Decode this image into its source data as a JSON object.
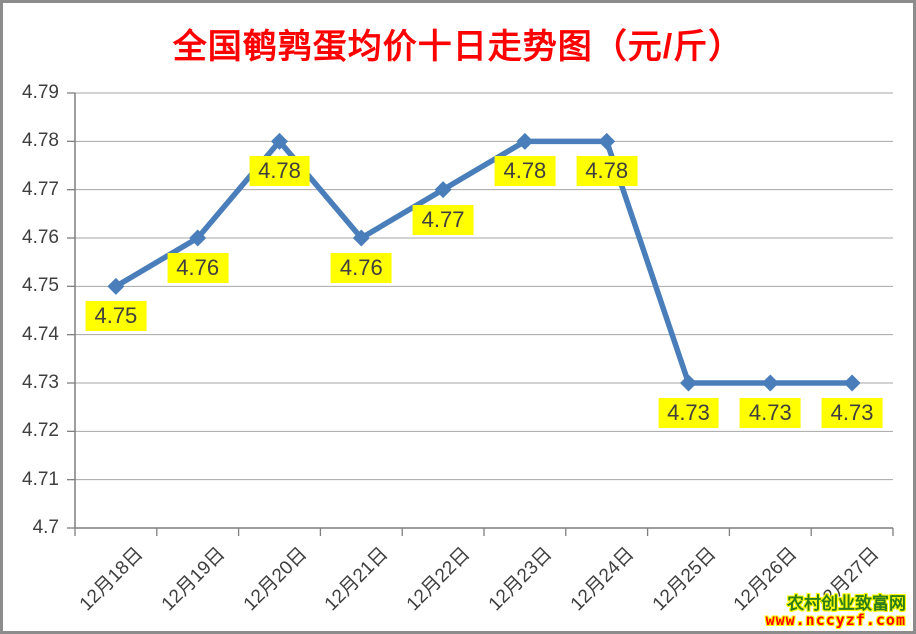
{
  "title": "全国鹌鹑蛋均价十日走势图（元/斤）",
  "watermark": {
    "site_name": "农村创业致富网",
    "url": "www.nccyzf.com"
  },
  "chart_data": {
    "type": "line",
    "title": "全国鹌鹑蛋均价十日走势图（元/斤）",
    "categories": [
      "12月18日",
      "12月19日",
      "12月20日",
      "12月21日",
      "12月22日",
      "12月23日",
      "12月24日",
      "12月25日",
      "12月26日",
      "12月27日"
    ],
    "values": [
      4.75,
      4.76,
      4.78,
      4.76,
      4.77,
      4.78,
      4.78,
      4.73,
      4.73,
      4.73
    ],
    "data_labels": [
      "4.75",
      "4.76",
      "4.78",
      "4.76",
      "4.77",
      "4.78",
      "4.78",
      "4.73",
      "4.73",
      "4.73"
    ],
    "ylim": [
      4.7,
      4.79
    ],
    "ytick_labels": [
      "4.7",
      "4.71",
      "4.72",
      "4.73",
      "4.74",
      "4.75",
      "4.76",
      "4.77",
      "4.78",
      "4.79"
    ],
    "xlabel": "",
    "ylabel": "",
    "grid": true,
    "legend": "none",
    "marker": "diamond",
    "colors": {
      "line": "#4A7EBB",
      "marker": "#4A7EBB",
      "data_label_bg": "#FFFF00",
      "data_label_text": "#3F3F3F",
      "title": "#FF0000",
      "grid": "#A6A6A6",
      "axis": "#7F7F7F",
      "tick_text": "#3F3F3F"
    }
  }
}
